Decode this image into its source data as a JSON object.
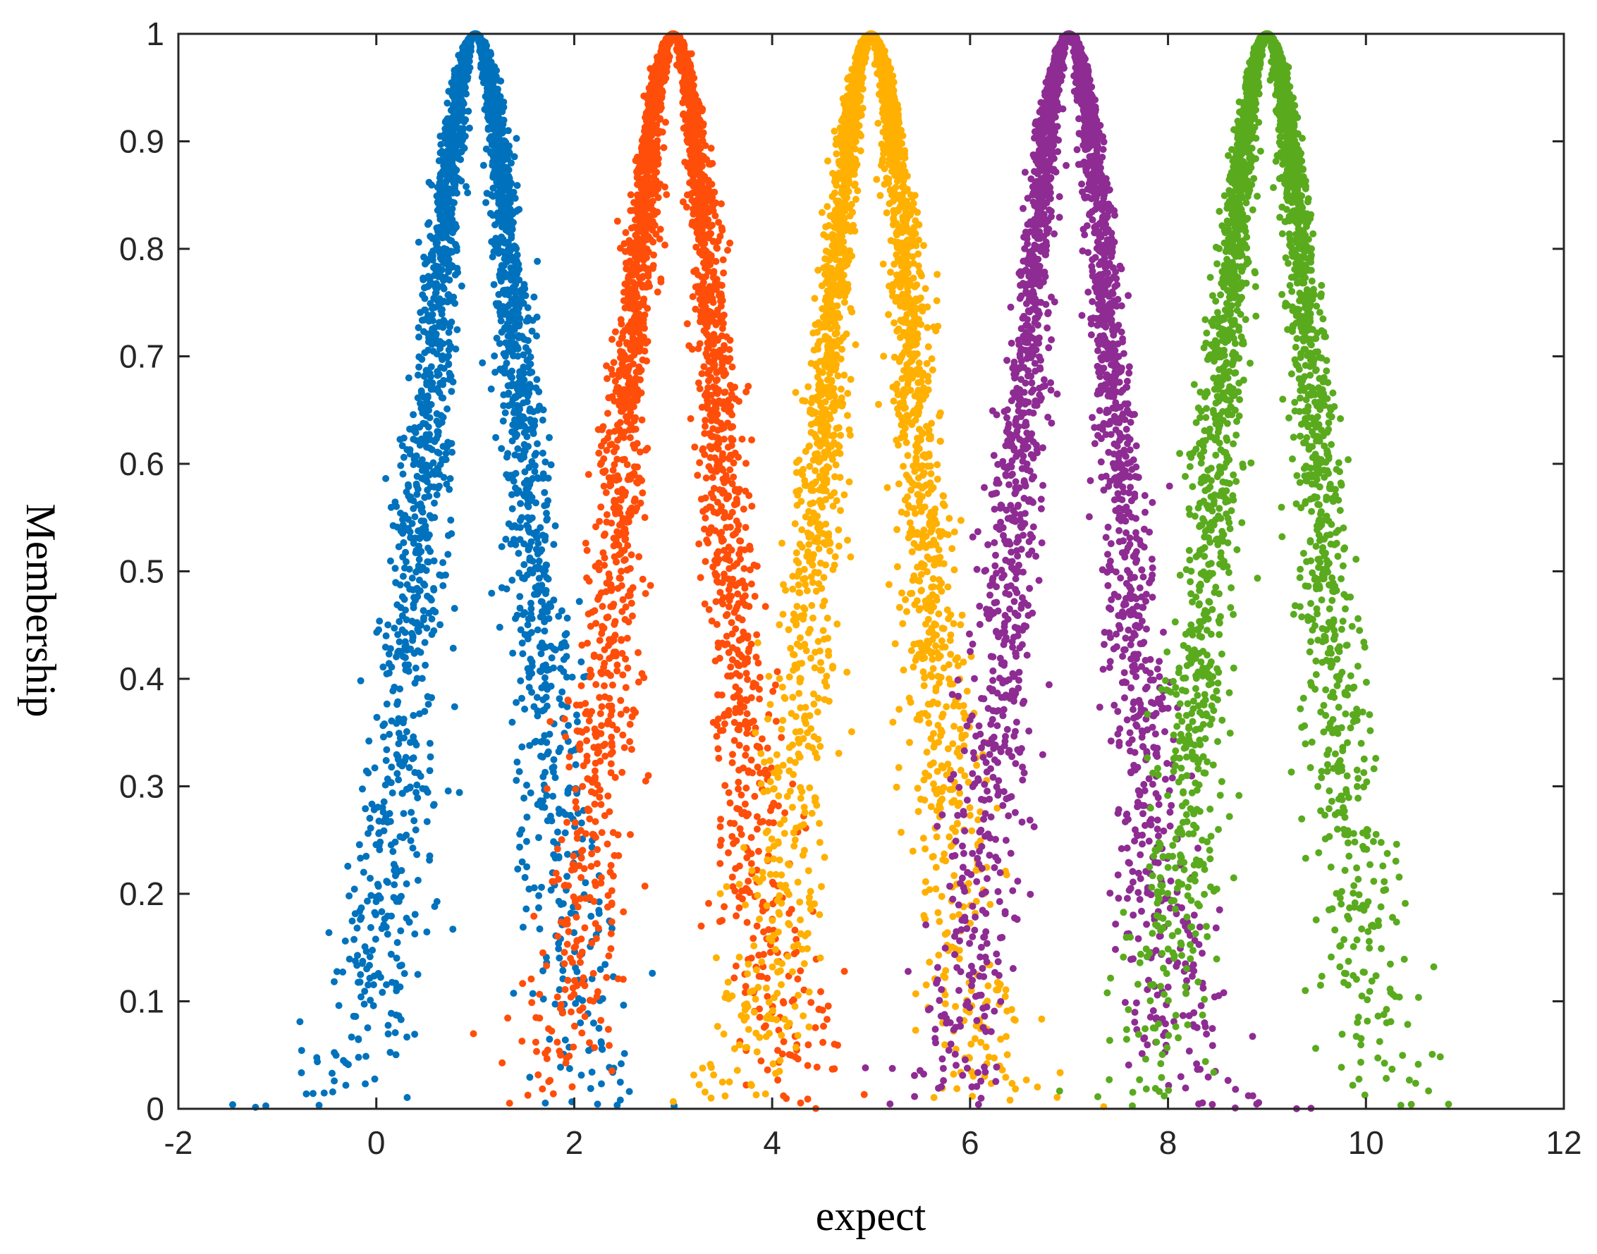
{
  "chart_data": {
    "type": "scatter",
    "title": "",
    "xlabel": "expect",
    "ylabel": "Membership",
    "xlim": [
      -2,
      12
    ],
    "ylim": [
      0,
      1
    ],
    "x_ticks": [
      -2,
      0,
      2,
      4,
      6,
      8,
      10,
      12
    ],
    "y_ticks": [
      0,
      0.1,
      0.2,
      0.3,
      0.4,
      0.5,
      0.6,
      0.7,
      0.8,
      0.9,
      1
    ],
    "x_tick_labels": [
      "-2",
      "0",
      "2",
      "4",
      "6",
      "8",
      "10",
      "12"
    ],
    "y_tick_labels": [
      "0",
      "0.1",
      "0.2",
      "0.3",
      "0.4",
      "0.5",
      "0.6",
      "0.7",
      "0.8",
      "0.9",
      "1"
    ],
    "grid": false,
    "legend": "none",
    "series": [
      {
        "color": "#0072BD",
        "expectation": 1,
        "entropy": 0.5,
        "hyper_entropy": 0.12,
        "points": 3000
      },
      {
        "color": "#FF4E0A",
        "expectation": 3,
        "entropy": 0.5,
        "hyper_entropy": 0.12,
        "points": 3000
      },
      {
        "color": "#FFB000",
        "expectation": 5,
        "entropy": 0.5,
        "hyper_entropy": 0.12,
        "points": 3000
      },
      {
        "color": "#8E2C93",
        "expectation": 7,
        "entropy": 0.5,
        "hyper_entropy": 0.12,
        "points": 3000
      },
      {
        "color": "#5AAA1E",
        "expectation": 9,
        "entropy": 0.5,
        "hyper_entropy": 0.12,
        "points": 3000
      }
    ]
  }
}
